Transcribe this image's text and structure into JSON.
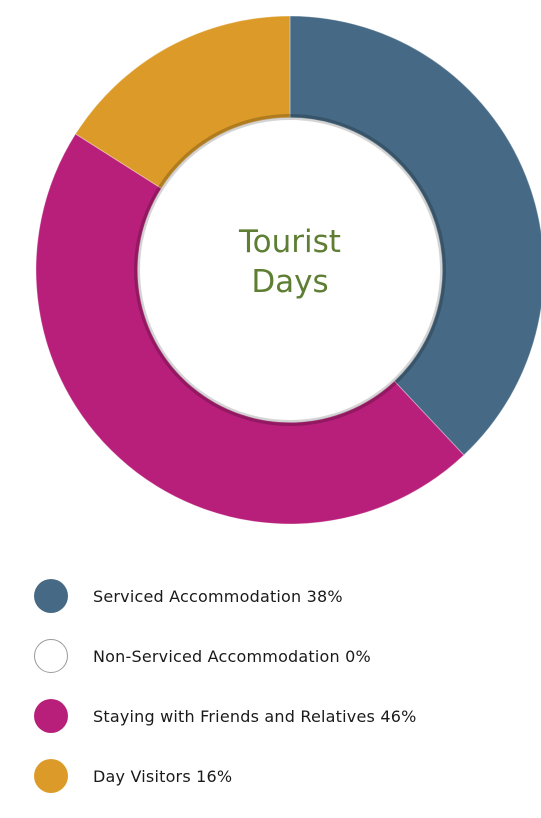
{
  "chart_data": {
    "type": "pie",
    "title": "Tourist Days",
    "title_lines": [
      "Tourist",
      "Days"
    ],
    "inner_radius_ratio": 0.6,
    "slices": [
      {
        "label": "Serviced Accommodation",
        "value": 38,
        "color": "#466a85",
        "legend": "Serviced Accommodation 38%"
      },
      {
        "label": "Non-Serviced Accommodation",
        "value": 0,
        "color": "#ffffff",
        "legend": "Non-Serviced Accommodation 0%"
      },
      {
        "label": "Staying with Friends and Relatives",
        "value": 46,
        "color": "#b81f7a",
        "legend": "Staying with Friends and Relatives 46%"
      },
      {
        "label": "Day Visitors",
        "value": 16,
        "color": "#dc9b28",
        "legend": "Day Visitors 16%"
      }
    ]
  },
  "colors": {
    "title": "#5e7f33"
  }
}
